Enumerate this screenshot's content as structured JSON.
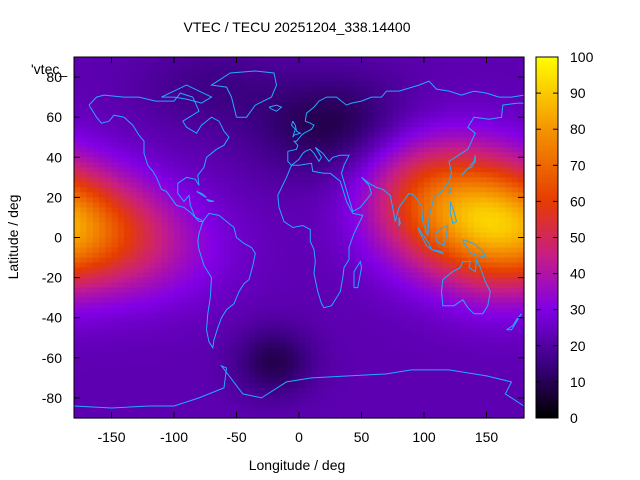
{
  "chart_data": {
    "type": "heatmap",
    "title": "VTEC / TECU 20251204_338.14400",
    "xlabel": "Longitude / deg",
    "ylabel": "Latitude / deg",
    "series_label": "'vtec_",
    "xlim": [
      -180,
      180
    ],
    "ylim": [
      -90,
      90
    ],
    "xticks": [
      -150,
      -100,
      -50,
      0,
      50,
      100,
      150
    ],
    "yticks": [
      -80,
      -60,
      -40,
      -20,
      0,
      20,
      40,
      60,
      80
    ],
    "colorbar": {
      "min": 0,
      "max": 100,
      "ticks": [
        0,
        10,
        20,
        30,
        40,
        50,
        60,
        70,
        80,
        90,
        100
      ]
    },
    "grid": false,
    "grid_resolution": {
      "lon_step": 5,
      "lat_step": 2.5
    },
    "vtec_model": {
      "background": 22,
      "components": [
        {
          "lon": 120,
          "lat": 12,
          "amp": 40,
          "sig_lon": 40,
          "sig_lat": 22
        },
        {
          "lon": 155,
          "lat": 5,
          "amp": 18,
          "sig_lon": 30,
          "sig_lat": 25
        },
        {
          "lon": -170,
          "lat": 5,
          "amp": 34,
          "sig_lon": 38,
          "sig_lat": 20
        },
        {
          "lon": -120,
          "lat": -5,
          "amp": 14,
          "sig_lon": 45,
          "sig_lat": 20
        },
        {
          "lon": 90,
          "lat": 30,
          "amp": 12,
          "sig_lon": 35,
          "sig_lat": 20
        },
        {
          "lon": 30,
          "lat": 55,
          "amp": -14,
          "sig_lon": 45,
          "sig_lat": 18
        },
        {
          "lon": -20,
          "lat": -62,
          "amp": -13,
          "sig_lon": 22,
          "sig_lat": 12
        },
        {
          "lon": -70,
          "lat": 75,
          "amp": -6,
          "sig_lon": 40,
          "sig_lat": 15
        }
      ]
    },
    "coastlines": [
      [
        [
          -168,
          66
        ],
        [
          -162,
          70
        ],
        [
          -156,
          71
        ],
        [
          -140,
          70
        ],
        [
          -128,
          70
        ],
        [
          -115,
          68
        ],
        [
          -100,
          68
        ],
        [
          -95,
          72
        ],
        [
          -85,
          70
        ],
        [
          -80,
          63
        ],
        [
          -93,
          58
        ],
        [
          -90,
          55
        ],
        [
          -82,
          52
        ],
        [
          -78,
          56
        ],
        [
          -70,
          60
        ],
        [
          -64,
          58
        ],
        [
          -60,
          53
        ],
        [
          -56,
          50
        ],
        [
          -60,
          46
        ],
        [
          -66,
          44
        ],
        [
          -70,
          42
        ],
        [
          -74,
          40
        ],
        [
          -76,
          35
        ],
        [
          -81,
          31
        ],
        [
          -80,
          26
        ],
        [
          -83,
          29
        ],
        [
          -90,
          30
        ],
        [
          -97,
          27
        ],
        [
          -97,
          22
        ],
        [
          -92,
          18
        ],
        [
          -88,
          21
        ],
        [
          -87,
          16
        ],
        [
          -83,
          10
        ],
        [
          -79,
          9
        ],
        [
          -77,
          8
        ],
        [
          -80,
          8
        ],
        [
          -86,
          12
        ],
        [
          -92,
          15
        ],
        [
          -98,
          16
        ],
        [
          -106,
          23
        ],
        [
          -110,
          24
        ],
        [
          -114,
          30
        ],
        [
          -117,
          33
        ],
        [
          -121,
          36
        ],
        [
          -124,
          42
        ],
        [
          -124,
          48
        ],
        [
          -128,
          51
        ],
        [
          -133,
          56
        ],
        [
          -140,
          60
        ],
        [
          -148,
          61
        ],
        [
          -152,
          58
        ],
        [
          -158,
          57
        ],
        [
          -162,
          60
        ],
        [
          -165,
          63
        ],
        [
          -168,
          66
        ]
      ],
      [
        [
          -77,
          8
        ],
        [
          -72,
          12
        ],
        [
          -64,
          11
        ],
        [
          -60,
          9
        ],
        [
          -52,
          5
        ],
        [
          -50,
          0
        ],
        [
          -44,
          -3
        ],
        [
          -38,
          -5
        ],
        [
          -35,
          -8
        ],
        [
          -37,
          -14
        ],
        [
          -40,
          -21
        ],
        [
          -44,
          -23
        ],
        [
          -48,
          -27
        ],
        [
          -52,
          -33
        ],
        [
          -58,
          -36
        ],
        [
          -62,
          -40
        ],
        [
          -65,
          -45
        ],
        [
          -68,
          -51
        ],
        [
          -69,
          -55
        ],
        [
          -72,
          -52
        ],
        [
          -74,
          -46
        ],
        [
          -73,
          -38
        ],
        [
          -71,
          -30
        ],
        [
          -70,
          -20
        ],
        [
          -76,
          -14
        ],
        [
          -80,
          -6
        ],
        [
          -81,
          -2
        ],
        [
          -80,
          2
        ],
        [
          -77,
          8
        ]
      ],
      [
        [
          -50,
          60
        ],
        [
          -42,
          60
        ],
        [
          -35,
          66
        ],
        [
          -22,
          70
        ],
        [
          -18,
          76
        ],
        [
          -20,
          82
        ],
        [
          -35,
          83
        ],
        [
          -55,
          82
        ],
        [
          -65,
          78
        ],
        [
          -70,
          76
        ],
        [
          -58,
          75
        ],
        [
          -54,
          70
        ],
        [
          -50,
          60
        ]
      ],
      [
        [
          -17,
          21
        ],
        [
          -16,
          15
        ],
        [
          -12,
          8
        ],
        [
          -5,
          5
        ],
        [
          3,
          6
        ],
        [
          9,
          4
        ],
        [
          9,
          -2
        ],
        [
          12,
          -6
        ],
        [
          13,
          -12
        ],
        [
          12,
          -18
        ],
        [
          15,
          -27
        ],
        [
          18,
          -33
        ],
        [
          20,
          -35
        ],
        [
          26,
          -34
        ],
        [
          33,
          -27
        ],
        [
          35,
          -20
        ],
        [
          36,
          -15
        ],
        [
          40,
          -11
        ],
        [
          40,
          -5
        ],
        [
          44,
          2
        ],
        [
          51,
          11
        ],
        [
          43,
          12
        ],
        [
          38,
          18
        ],
        [
          33,
          28
        ],
        [
          25,
          32
        ],
        [
          20,
          32
        ],
        [
          11,
          33
        ],
        [
          10,
          37
        ],
        [
          0,
          36
        ],
        [
          -6,
          36
        ],
        [
          -10,
          30
        ],
        [
          -17,
          21
        ]
      ],
      [
        [
          -9,
          43
        ],
        [
          -9,
          38
        ],
        [
          -6,
          36
        ],
        [
          0,
          39
        ],
        [
          3,
          42
        ],
        [
          5,
          43
        ],
        [
          9,
          44
        ],
        [
          12,
          42
        ],
        [
          16,
          38
        ],
        [
          18,
          40
        ],
        [
          13,
          45
        ],
        [
          19,
          42
        ],
        [
          24,
          38
        ],
        [
          27,
          40
        ],
        [
          33,
          41
        ],
        [
          40,
          41
        ],
        [
          36,
          36
        ],
        [
          34,
          32
        ],
        [
          43,
          13
        ],
        [
          49,
          15
        ],
        [
          58,
          22
        ],
        [
          56,
          26
        ],
        [
          50,
          30
        ],
        [
          56,
          27
        ],
        [
          62,
          25
        ],
        [
          67,
          24
        ],
        [
          73,
          21
        ],
        [
          77,
          8
        ],
        [
          80,
          15
        ],
        [
          88,
          22
        ],
        [
          92,
          21
        ],
        [
          98,
          16
        ],
        [
          99,
          8
        ],
        [
          103,
          1
        ],
        [
          104,
          10
        ],
        [
          106,
          15
        ],
        [
          108,
          20
        ],
        [
          114,
          23
        ],
        [
          120,
          28
        ],
        [
          122,
          32
        ],
        [
          120,
          38
        ],
        [
          125,
          40
        ],
        [
          130,
          42
        ],
        [
          135,
          44
        ],
        [
          141,
          52
        ],
        [
          135,
          55
        ],
        [
          140,
          60
        ],
        [
          152,
          59
        ],
        [
          162,
          60
        ],
        [
          163,
          66
        ],
        [
          175,
          67
        ],
        [
          180,
          67
        ]
      ],
      [
        [
          180,
          71
        ],
        [
          170,
          70
        ],
        [
          160,
          70
        ],
        [
          150,
          72
        ],
        [
          140,
          73
        ],
        [
          130,
          71
        ],
        [
          120,
          73
        ],
        [
          110,
          74
        ],
        [
          104,
          78
        ],
        [
          96,
          76
        ],
        [
          80,
          73
        ],
        [
          70,
          73
        ],
        [
          66,
          70
        ],
        [
          58,
          70
        ],
        [
          50,
          68
        ],
        [
          42,
          67
        ],
        [
          38,
          66
        ],
        [
          30,
          70
        ],
        [
          22,
          70
        ],
        [
          16,
          68
        ],
        [
          12,
          65
        ],
        [
          6,
          62
        ],
        [
          5,
          58
        ],
        [
          9,
          57
        ],
        [
          12,
          56
        ],
        [
          10,
          54
        ],
        [
          4,
          52
        ],
        [
          2,
          51
        ],
        [
          -2,
          48
        ],
        [
          -4,
          48
        ],
        [
          -1,
          46
        ],
        [
          -2,
          44
        ],
        [
          -9,
          43
        ]
      ],
      [
        [
          -5,
          58
        ],
        [
          -3,
          56
        ],
        [
          -2,
          53
        ],
        [
          1,
          52
        ],
        [
          -4,
          51
        ],
        [
          -5,
          50
        ],
        [
          -3,
          54
        ],
        [
          -6,
          56
        ],
        [
          -5,
          58
        ]
      ],
      [
        [
          -24,
          65
        ],
        [
          -18,
          66
        ],
        [
          -14,
          65
        ],
        [
          -18,
          63
        ],
        [
          -22,
          64
        ],
        [
          -24,
          65
        ]
      ],
      [
        [
          115,
          -21
        ],
        [
          123,
          -17
        ],
        [
          129,
          -15
        ],
        [
          131,
          -12
        ],
        [
          137,
          -12
        ],
        [
          136,
          -15
        ],
        [
          141,
          -17
        ],
        [
          142,
          -11
        ],
        [
          145,
          -15
        ],
        [
          149,
          -22
        ],
        [
          153,
          -27
        ],
        [
          151,
          -34
        ],
        [
          147,
          -38
        ],
        [
          140,
          -38
        ],
        [
          135,
          -35
        ],
        [
          131,
          -31
        ],
        [
          124,
          -34
        ],
        [
          115,
          -34
        ],
        [
          114,
          -27
        ],
        [
          115,
          -21
        ]
      ],
      [
        [
          44,
          -25
        ],
        [
          47,
          -25
        ],
        [
          50,
          -15
        ],
        [
          49,
          -12
        ],
        [
          44,
          -17
        ],
        [
          44,
          -25
        ]
      ],
      [
        [
          95,
          5
        ],
        [
          104,
          -3
        ],
        [
          106,
          -6
        ],
        [
          102,
          -4
        ],
        [
          97,
          2
        ],
        [
          95,
          5
        ]
      ],
      [
        [
          106,
          -6
        ],
        [
          115,
          -8
        ],
        [
          114,
          -7
        ],
        [
          106,
          -6
        ]
      ],
      [
        [
          109,
          2
        ],
        [
          115,
          5
        ],
        [
          119,
          6
        ],
        [
          118,
          1
        ],
        [
          116,
          -4
        ],
        [
          110,
          -2
        ],
        [
          109,
          2
        ]
      ],
      [
        [
          131,
          -1
        ],
        [
          140,
          -3
        ],
        [
          147,
          -7
        ],
        [
          150,
          -10
        ],
        [
          143,
          -9
        ],
        [
          138,
          -8
        ],
        [
          132,
          -3
        ],
        [
          131,
          -1
        ]
      ],
      [
        [
          121,
          18
        ],
        [
          124,
          13
        ],
        [
          126,
          8
        ],
        [
          123,
          7
        ],
        [
          121,
          12
        ],
        [
          121,
          18
        ]
      ],
      [
        [
          130,
          31
        ],
        [
          134,
          34
        ],
        [
          138,
          35
        ],
        [
          141,
          38
        ],
        [
          141,
          41
        ],
        [
          140,
          38
        ],
        [
          136,
          35
        ],
        [
          130,
          31
        ]
      ],
      [
        [
          120,
          22
        ],
        [
          121,
          25
        ],
        [
          122,
          23
        ],
        [
          120,
          22
        ]
      ],
      [
        [
          166,
          -46
        ],
        [
          171,
          -44
        ],
        [
          174,
          -41
        ],
        [
          178,
          -38
        ],
        [
          175,
          -41
        ],
        [
          170,
          -46
        ],
        [
          166,
          -46
        ]
      ],
      [
        [
          -180,
          -84
        ],
        [
          -150,
          -85
        ],
        [
          -120,
          -84
        ],
        [
          -100,
          -84
        ],
        [
          -80,
          -80
        ],
        [
          -60,
          -75
        ],
        [
          -58,
          -65
        ],
        [
          -62,
          -64
        ],
        [
          -45,
          -78
        ],
        [
          -30,
          -80
        ],
        [
          -10,
          -72
        ],
        [
          10,
          -70
        ],
        [
          40,
          -69
        ],
        [
          70,
          -68
        ],
        [
          90,
          -66
        ],
        [
          120,
          -66
        ],
        [
          150,
          -69
        ],
        [
          170,
          -72
        ],
        [
          165,
          -78
        ],
        [
          180,
          -84
        ]
      ],
      [
        [
          -82,
          23
        ],
        [
          -77,
          21
        ],
        [
          -74,
          20
        ],
        [
          -78,
          22
        ],
        [
          -82,
          23
        ]
      ],
      [
        [
          -74,
          19
        ],
        [
          -68,
          18
        ],
        [
          -72,
          18
        ],
        [
          -74,
          19
        ]
      ],
      [
        [
          80,
          10
        ],
        [
          81,
          7
        ],
        [
          80,
          6
        ],
        [
          80,
          10
        ]
      ],
      [
        [
          -110,
          70
        ],
        [
          -100,
          73
        ],
        [
          -90,
          76
        ],
        [
          -80,
          73
        ],
        [
          -70,
          70
        ],
        [
          -78,
          67
        ],
        [
          -90,
          69
        ],
        [
          -100,
          70
        ],
        [
          -110,
          70
        ]
      ]
    ]
  }
}
